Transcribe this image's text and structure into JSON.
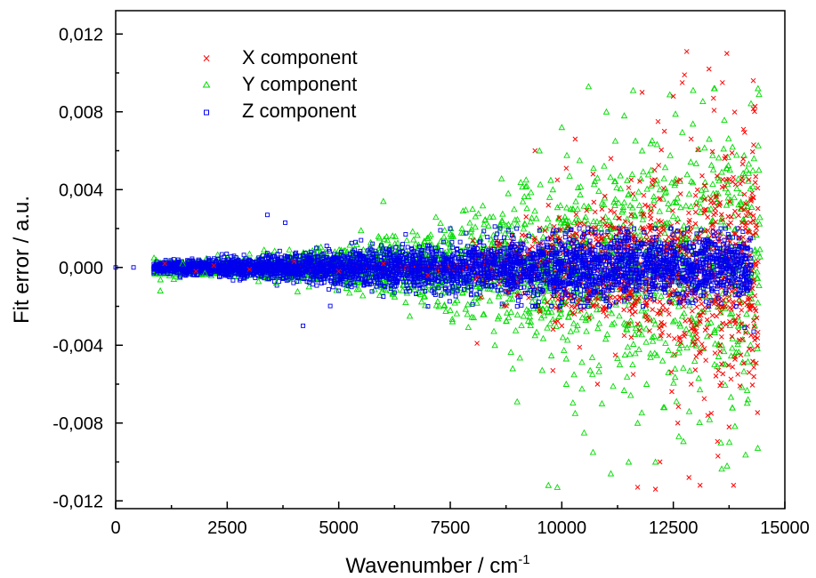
{
  "chart_data": {
    "type": "scatter",
    "xlabel": "Wavenumber  / cm",
    "xlabel_superscript": "-1",
    "ylabel": "Fit error / a.u.",
    "xlim": [
      0,
      15000
    ],
    "ylim": [
      -0.0124,
      0.0132
    ],
    "xticks": [
      0,
      2500,
      5000,
      7500,
      10000,
      12500,
      15000
    ],
    "xtick_labels": [
      "0",
      "2500",
      "5000",
      "7500",
      "10000",
      "12500",
      "15000"
    ],
    "yticks": [
      -0.012,
      -0.008,
      -0.004,
      0.0,
      0.004,
      0.008,
      0.012
    ],
    "ytick_labels": [
      "-0,012",
      "-0,008",
      "-0,004",
      "0,000",
      "0,004",
      "0,008",
      "0,012"
    ],
    "grid": false,
    "legend_position": "top-left",
    "series": [
      {
        "name": "X component",
        "marker": "x",
        "color": "#ff0000",
        "points": [
          [
            1100,
            0.0002
          ],
          [
            1800,
            -0.0002
          ],
          [
            2200,
            0.0001
          ],
          [
            3000,
            -0.0001
          ],
          [
            4000,
            0.0003
          ],
          [
            5000,
            -0.0002
          ],
          [
            6000,
            0.0002
          ],
          [
            7000,
            -0.0004
          ],
          [
            8100,
            -0.0039
          ],
          [
            8600,
            0.0012
          ],
          [
            9000,
            -0.0014
          ],
          [
            9200,
            0.0026
          ],
          [
            9400,
            0.006
          ],
          [
            9500,
            -0.0022
          ],
          [
            9700,
            0.0032
          ],
          [
            9800,
            -0.0053
          ],
          [
            9900,
            0.0045
          ],
          [
            10000,
            -0.003
          ],
          [
            10100,
            0.0051
          ],
          [
            10200,
            -0.0015
          ],
          [
            10300,
            0.0066
          ],
          [
            10400,
            -0.0041
          ],
          [
            10500,
            0.0022
          ],
          [
            10600,
            -0.0012
          ],
          [
            10700,
            0.0048
          ],
          [
            10800,
            -0.006
          ],
          [
            10900,
            0.003
          ],
          [
            11000,
            -0.0025
          ],
          [
            11100,
            0.0056
          ],
          [
            11200,
            -0.0045
          ],
          [
            11300,
            0.0018
          ],
          [
            11400,
            -0.0035
          ],
          [
            11500,
            0.0041
          ],
          [
            11600,
            -0.0055
          ],
          [
            11700,
            -0.0113
          ],
          [
            11800,
            0.009
          ],
          [
            11900,
            -0.0018
          ],
          [
            12000,
            0.0025
          ],
          [
            12100,
            -0.0114
          ],
          [
            12200,
            -0.01
          ],
          [
            12300,
            0.007
          ],
          [
            12400,
            -0.0035
          ],
          [
            12500,
            0.0088
          ],
          [
            12600,
            -0.008
          ],
          [
            12700,
            0.0095
          ],
          [
            12750,
            0.0099
          ],
          [
            12800,
            0.0111
          ],
          [
            12850,
            -0.0108
          ],
          [
            12900,
            -0.006
          ],
          [
            13000,
            0.0037
          ],
          [
            13100,
            -0.0112
          ],
          [
            13200,
            0.0042
          ],
          [
            13300,
            0.0102
          ],
          [
            13350,
            -0.0075
          ],
          [
            13400,
            0.0087
          ],
          [
            13450,
            0.0028
          ],
          [
            13500,
            -0.0097
          ],
          [
            13550,
            -0.004
          ],
          [
            13600,
            0.0095
          ],
          [
            13650,
            0.0056
          ],
          [
            13700,
            0.011
          ],
          [
            13750,
            -0.0082
          ],
          [
            13800,
            0.0026
          ],
          [
            13850,
            -0.0112
          ],
          [
            13900,
            0.0012
          ],
          [
            14000,
            0.0043
          ],
          [
            14050,
            -0.0037
          ],
          [
            14100,
            -0.0018
          ],
          [
            14200,
            -0.0054
          ],
          [
            14300,
            0.0063
          ],
          [
            14400,
            0.0003
          ]
        ]
      },
      {
        "name": "Y component",
        "marker": "triangle",
        "color": "#00dd00",
        "points": [
          [
            1000,
            -0.0012
          ],
          [
            1500,
            0.0002
          ],
          [
            2000,
            -0.0003
          ],
          [
            3000,
            0.0007
          ],
          [
            3600,
            -0.0008
          ],
          [
            4500,
            0.001
          ],
          [
            5500,
            0.0019
          ],
          [
            6000,
            0.0034
          ],
          [
            6500,
            -0.0018
          ],
          [
            7000,
            0.0015
          ],
          [
            7500,
            -0.0022
          ],
          [
            8000,
            0.003
          ],
          [
            8500,
            -0.004
          ],
          [
            8800,
            0.0038
          ],
          [
            8900,
            -0.0052
          ],
          [
            9000,
            -0.0069
          ],
          [
            9200,
            0.0045
          ],
          [
            9400,
            -0.0035
          ],
          [
            9500,
            0.006
          ],
          [
            9700,
            -0.0112
          ],
          [
            9800,
            0.004
          ],
          [
            9900,
            -0.0113
          ],
          [
            10000,
            0.0072
          ],
          [
            10100,
            -0.006
          ],
          [
            10200,
            0.003
          ],
          [
            10300,
            -0.0075
          ],
          [
            10400,
            0.0055
          ],
          [
            10500,
            -0.0085
          ],
          [
            10600,
            0.0093
          ],
          [
            10700,
            -0.0095
          ],
          [
            10800,
            0.0046
          ],
          [
            10900,
            -0.007
          ],
          [
            11000,
            0.008
          ],
          [
            11100,
            -0.0106
          ],
          [
            11200,
            0.0065
          ],
          [
            11300,
            -0.005
          ],
          [
            11400,
            0.0078
          ],
          [
            11500,
            -0.01
          ],
          [
            11600,
            0.0091
          ],
          [
            11700,
            -0.008
          ],
          [
            11800,
            0.006
          ],
          [
            11900,
            -0.006
          ],
          [
            12000,
            0.005
          ],
          [
            12100,
            -0.01
          ],
          [
            12200,
            0.004
          ],
          [
            12300,
            -0.0072
          ],
          [
            12400,
            0.003
          ],
          [
            12500,
            -0.0045
          ],
          [
            12600,
            0.0025
          ],
          [
            12700,
            -0.0025
          ],
          [
            12800,
            0.0015
          ]
        ]
      },
      {
        "name": "Z component",
        "marker": "square",
        "color": "#0000ee",
        "points": [
          [
            0,
            0.0
          ],
          [
            400,
            0.0
          ],
          [
            900,
            0.0001
          ],
          [
            1500,
            0.0
          ],
          [
            2000,
            0.0002
          ],
          [
            2500,
            -0.0003
          ],
          [
            3000,
            0.0004
          ],
          [
            3400,
            0.0027
          ],
          [
            3800,
            0.0023
          ],
          [
            4200,
            -0.003
          ],
          [
            4500,
            0.001
          ],
          [
            5000,
            -0.0012
          ],
          [
            5500,
            0.0014
          ],
          [
            6000,
            -0.0015
          ],
          [
            6500,
            0.0017
          ],
          [
            7000,
            -0.002
          ],
          [
            7500,
            0.002
          ],
          [
            8000,
            -0.0019
          ],
          [
            8500,
            0.0021
          ],
          [
            9000,
            -0.002
          ],
          [
            9500,
            0.0019
          ],
          [
            10000,
            -0.0018
          ],
          [
            10500,
            0.0017
          ],
          [
            11000,
            -0.0016
          ],
          [
            11500,
            0.0014
          ],
          [
            12000,
            -0.0014
          ],
          [
            12500,
            0.001
          ],
          [
            13000,
            -0.0012
          ],
          [
            13500,
            0.0008
          ],
          [
            14000,
            0.0011
          ],
          [
            14100,
            -0.0031
          ],
          [
            14200,
            0.0014
          ],
          [
            14300,
            -0.0033
          ]
        ]
      }
    ],
    "band_halfwidth_fn_note": ""
  }
}
